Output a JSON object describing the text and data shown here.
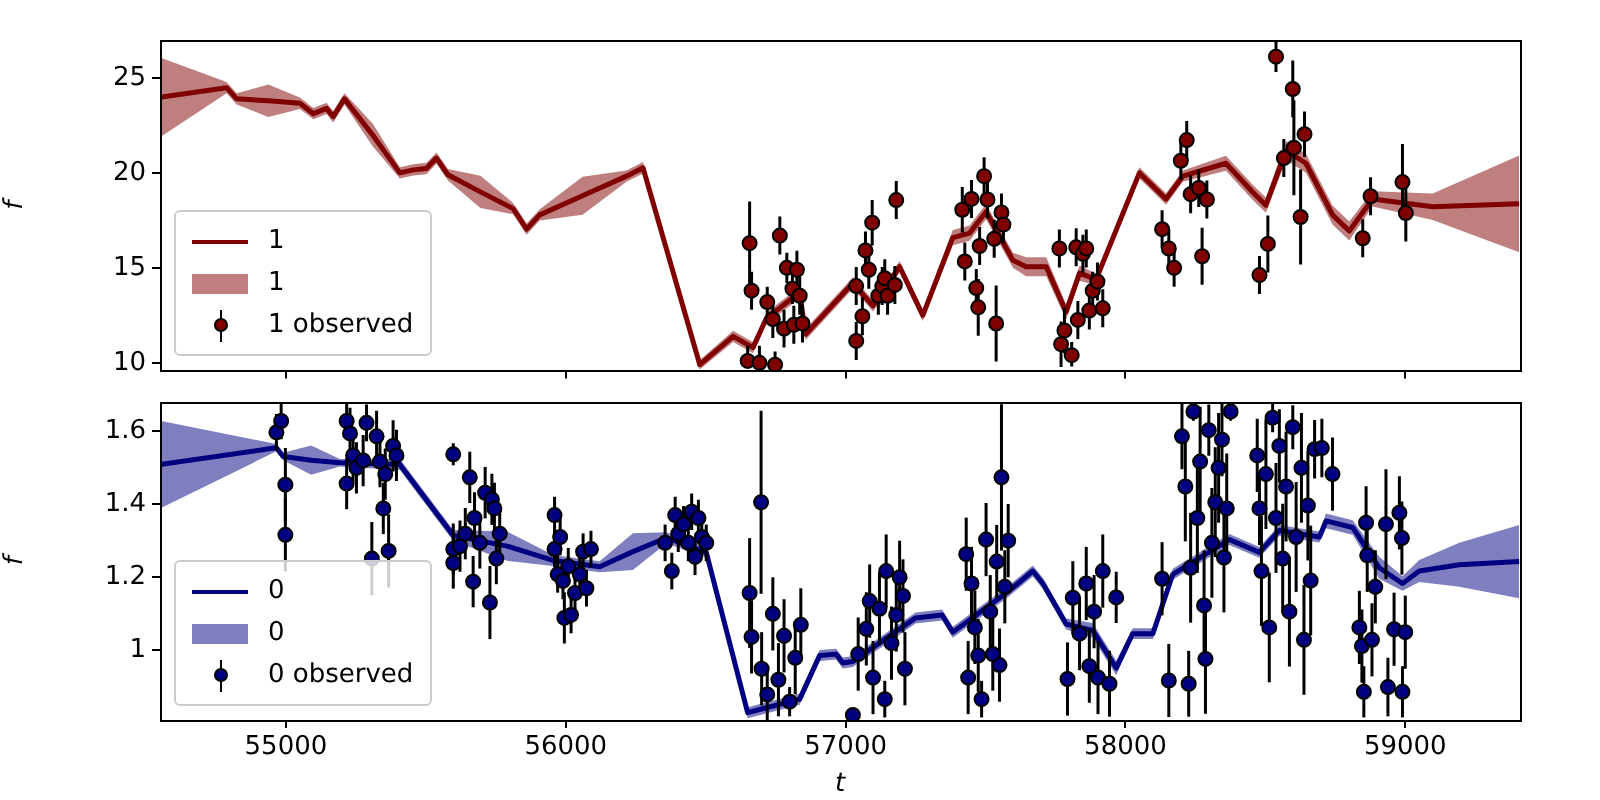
{
  "chart_data": [
    {
      "type": "line",
      "ylabel": "f",
      "xlim": [
        54550,
        59410
      ],
      "xticks": [
        55000,
        56000,
        57000,
        58000,
        59000
      ],
      "ylim": [
        9.6,
        27
      ],
      "yticks": [
        10,
        15,
        20,
        25
      ],
      "tick_labels": "y",
      "legend": "bottom left",
      "series": [
        {
          "name": "1",
          "marker": "none",
          "color": "#800000",
          "x": [
            54550,
            54788,
            54824,
            54937,
            55050,
            55098,
            55145,
            55169,
            55209,
            55310,
            55407,
            55455,
            55502,
            55538,
            55579,
            55695,
            55812,
            55860,
            55907,
            56060,
            56217,
            56276,
            56479,
            56598,
            56669,
            56717,
            56836,
            56857,
            57026,
            57098,
            57193,
            57276,
            57383,
            57443,
            57502,
            57598,
            57645,
            57717,
            57788,
            57836,
            57895,
            58050,
            58145,
            58205,
            58359,
            58455,
            58502,
            58574,
            58645,
            58740,
            58800,
            58883,
            59098,
            59407
          ],
          "values": [
            23.98,
            24.49,
            23.9,
            23.8,
            23.67,
            23.12,
            23.4,
            22.96,
            23.9,
            22.0,
            20.0,
            20.16,
            20.23,
            20.78,
            19.9,
            19.0,
            18.12,
            17.04,
            17.79,
            18.8,
            19.83,
            20.27,
            9.9,
            11.39,
            10.8,
            12.35,
            13.7,
            11.5,
            14.2,
            13.0,
            15.06,
            12.5,
            16.59,
            16.83,
            17.96,
            15.4,
            15.06,
            15.06,
            12.68,
            14.72,
            14.39,
            20.0,
            18.63,
            19.83,
            20.51,
            18.98,
            18.3,
            21.18,
            20.51,
            17.79,
            16.94,
            18.63,
            18.22,
            18.37
          ],
          "lower": [
            21.88,
            24.19,
            23.6,
            22.95,
            23.37,
            22.82,
            23.1,
            22.66,
            23.6,
            21.4,
            19.7,
            19.86,
            19.93,
            20.48,
            19.6,
            18.15,
            17.82,
            16.74,
            17.49,
            17.8,
            19.53,
            19.97,
            9.65,
            11.09,
            10.5,
            12.05,
            13.4,
            11.2,
            13.9,
            12.7,
            14.76,
            12.2,
            16.19,
            16.43,
            17.56,
            15.0,
            14.56,
            14.56,
            12.28,
            14.32,
            14.09,
            19.7,
            18.33,
            19.53,
            20.11,
            18.58,
            17.9,
            20.68,
            20.01,
            17.29,
            16.44,
            18.23,
            17.52,
            15.82
          ],
          "upper": [
            26.08,
            24.79,
            24.2,
            24.65,
            23.97,
            23.42,
            23.7,
            23.26,
            24.2,
            22.6,
            20.3,
            20.46,
            20.53,
            21.08,
            20.2,
            19.85,
            18.42,
            17.34,
            18.09,
            19.8,
            20.13,
            20.57,
            10.15,
            11.69,
            11.1,
            12.65,
            14.0,
            11.8,
            14.5,
            13.3,
            15.36,
            12.8,
            16.99,
            17.23,
            18.36,
            15.8,
            15.56,
            15.56,
            13.08,
            15.12,
            14.69,
            20.3,
            18.93,
            20.13,
            20.91,
            19.38,
            18.7,
            21.68,
            21.01,
            18.29,
            17.44,
            19.03,
            18.92,
            20.92
          ]
        },
        {
          "name": "1 observed",
          "type": "scatter",
          "marker": "circle",
          "color": "#800000",
          "x": [
            56657,
            56664,
            56650,
            56692,
            56748,
            56765,
            56790,
            56720,
            56740,
            56780,
            56810,
            56815,
            56826,
            56836,
            56846,
            57038,
            57038,
            57060,
            57071,
            57083,
            57095,
            57117,
            57131,
            57140,
            57150,
            57176,
            57181,
            57417,
            57426,
            57450,
            57467,
            57474,
            57479,
            57495,
            57507,
            57531,
            57538,
            57557,
            57564,
            57764,
            57770,
            57782,
            57808,
            57830,
            57824,
            57848,
            57860,
            57871,
            57883,
            57900,
            57919,
            58131,
            58155,
            58174,
            58198,
            58219,
            58233,
            58262,
            58274,
            58291,
            58479,
            58509,
            58538,
            58566,
            58598,
            58602,
            58626,
            58640,
            58848,
            58876,
            58990,
            59002
          ],
          "values": [
            16.3,
            13.8,
            10.1,
            10.0,
            9.9,
            16.7,
            15.0,
            13.2,
            12.3,
            11.8,
            13.9,
            12.0,
            14.9,
            13.53,
            12.07,
            14.04,
            11.15,
            12.45,
            15.92,
            14.9,
            17.38,
            13.53,
            14.04,
            14.45,
            13.53,
            14.1,
            18.57,
            18.06,
            15.34,
            18.63,
            13.94,
            12.92,
            16.15,
            19.83,
            18.6,
            16.53,
            12.07,
            17.92,
            17.28,
            16.02,
            10.98,
            11.7,
            10.4,
            12.26,
            16.08,
            15.74,
            16.02,
            12.75,
            13.8,
            14.28,
            12.87,
            17.04,
            16.02,
            15.0,
            20.64,
            21.73,
            18.88,
            19.21,
            15.61,
            18.6,
            14.62,
            16.26,
            26.12,
            20.78,
            24.42,
            21.33,
            17.68,
            22.04,
            16.56,
            18.77,
            19.52,
            17.89
          ],
          "errors": [
            2.2,
            1.0,
            [
              9.8,
              10.9
            ],
            [
              9.8,
              10.9
            ],
            [
              9.8,
              10.6
            ],
            1.0,
            0.8,
            0.8,
            1.0,
            1.0,
            0.8,
            1.0,
            1.0,
            1.0,
            1.0,
            1.0,
            1.0,
            1.0,
            1.0,
            1.0,
            1.2,
            1.0,
            1.0,
            1.0,
            1.0,
            1.0,
            1.0,
            1.2,
            1.0,
            1.0,
            1.0,
            1.5,
            1.0,
            1.0,
            1.0,
            1.0,
            2.0,
            1.0,
            1.0,
            1.0,
            1.2,
            1.2,
            [
              9.8,
              11.1
            ],
            1.0,
            1.0,
            1.0,
            1.0,
            1.0,
            1.0,
            1.0,
            1.0,
            1.0,
            1.0,
            1.0,
            1.0,
            1.0,
            1.0,
            1.0,
            1.5,
            1.0,
            1.0,
            1.5,
            0.8,
            1.0,
            1.5,
            2.5,
            2.5,
            1.2,
            1.0,
            1.0,
            2.0,
            1.5
          ]
        }
      ]
    },
    {
      "type": "line",
      "xlabel": "t",
      "ylabel": "f",
      "xlim": [
        54550,
        59410
      ],
      "xticks": [
        55000,
        56000,
        57000,
        58000,
        59000
      ],
      "ylim": [
        0.81,
        1.68
      ],
      "yticks": [
        1.0,
        1.2,
        1.4,
        1.6
      ],
      "legend": "bottom left",
      "series": [
        {
          "name": "0",
          "marker": "none",
          "color": "#000080",
          "x": [
            54550,
            54966,
            54990,
            55090,
            55193,
            55407,
            55598,
            55790,
            55955,
            56121,
            56240,
            56360,
            56502,
            56650,
            56836,
            56907,
            56966,
            56990,
            57026,
            57250,
            57345,
            57383,
            57574,
            57669,
            57705,
            57788,
            57883,
            57967,
            58026,
            58098,
            58169,
            58371,
            58479,
            58550,
            58693,
            58717,
            58812,
            58907,
            58990,
            59050,
            59193,
            59407
          ],
          "values": [
            1.508,
            1.554,
            1.53,
            1.52,
            1.513,
            1.508,
            1.314,
            1.285,
            1.246,
            1.229,
            1.27,
            1.308,
            1.268,
            0.83,
            0.867,
            0.986,
            0.99,
            0.966,
            0.97,
            1.089,
            1.097,
            1.05,
            1.157,
            1.217,
            1.183,
            1.072,
            1.055,
            0.952,
            1.046,
            1.046,
            1.208,
            1.303,
            1.268,
            1.328,
            1.31,
            1.354,
            1.336,
            1.226,
            1.183,
            1.217,
            1.234,
            1.243
          ],
          "lower": [
            1.388,
            1.544,
            1.52,
            1.48,
            1.503,
            1.493,
            1.299,
            1.245,
            1.231,
            1.214,
            1.22,
            1.293,
            1.253,
            0.815,
            0.852,
            0.971,
            0.975,
            0.951,
            0.955,
            1.074,
            1.082,
            1.035,
            1.142,
            1.202,
            1.168,
            1.057,
            1.035,
            0.932,
            1.031,
            1.031,
            1.193,
            1.288,
            1.253,
            1.313,
            1.295,
            1.334,
            1.316,
            1.196,
            1.163,
            1.187,
            1.174,
            1.143
          ],
          "upper": [
            1.628,
            1.564,
            1.54,
            1.56,
            1.523,
            1.523,
            1.329,
            1.325,
            1.261,
            1.244,
            1.32,
            1.323,
            1.283,
            0.845,
            0.882,
            1.001,
            1.005,
            0.981,
            0.985,
            1.104,
            1.112,
            1.065,
            1.172,
            1.232,
            1.198,
            1.087,
            1.075,
            0.972,
            1.061,
            1.061,
            1.223,
            1.318,
            1.283,
            1.343,
            1.325,
            1.374,
            1.356,
            1.256,
            1.203,
            1.247,
            1.294,
            1.343
          ]
        },
        {
          "name": "0 observed",
          "type": "scatter",
          "marker": "circle",
          "color": "#000080",
          "x": [
            54966,
            54983,
            54998,
            54998,
            55217,
            55229,
            55240,
            55252,
            55217,
            55276,
            55288,
            55307,
            55324,
            55336,
            55348,
            55355,
            55367,
            55383,
            55395,
            55598,
            55598,
            55598,
            55622,
            55641,
            55657,
            55669,
            55674,
            55693,
            55712,
            55729,
            55736,
            55745,
            55752,
            55764,
            55960,
            55960,
            55971,
            55980,
            55990,
            55995,
            56009,
            56019,
            56033,
            56050,
            56062,
            56074,
            56090,
            56355,
            56379,
            56391,
            56402,
            56421,
            56438,
            56450,
            56462,
            56474,
            56486,
            56502,
            56657,
            56698,
            56664,
            56700,
            56720,
            56740,
            56760,
            56780,
            56800,
            56820,
            56840,
            57026,
            57045,
            57074,
            57086,
            57098,
            57121,
            57140,
            57145,
            57164,
            57181,
            57193,
            57205,
            57212,
            57431,
            57438,
            57450,
            57462,
            57474,
            57486,
            57502,
            57517,
            57526,
            57540,
            57550,
            57557,
            57569,
            57581,
            57793,
            57812,
            57836,
            57860,
            57871,
            57888,
            57902,
            57919,
            57943,
            57967,
            58131,
            58155,
            58202,
            58214,
            58226,
            58233,
            58243,
            58257,
            58267,
            58281,
            58286,
            58298,
            58309,
            58321,
            58333,
            58345,
            58352,
            58362,
            58376,
            58471,
            58479,
            58486,
            58502,
            58514,
            58526,
            58538,
            58550,
            58562,
            58574,
            58586,
            58598,
            58610,
            58629,
            58638,
            58652,
            58662,
            58676,
            58702,
            58740,
            58836,
            58845,
            58852,
            58860,
            58864,
            58881,
            58893,
            58931,
            58938,
            58960,
            58979,
            58988,
            58990,
            59000
          ],
          "values": [
            1.596,
            1.627,
            1.453,
            1.316,
            1.627,
            1.593,
            1.533,
            1.499,
            1.456,
            1.519,
            1.622,
            1.251,
            1.585,
            1.516,
            1.388,
            1.482,
            1.272,
            1.559,
            1.533,
            1.536,
            1.277,
            1.239,
            1.285,
            1.319,
            1.473,
            1.188,
            1.362,
            1.294,
            1.431,
            1.131,
            1.413,
            1.388,
            1.251,
            1.319,
            1.37,
            1.277,
            1.208,
            1.31,
            1.19,
            1.089,
            1.23,
            1.097,
            1.157,
            1.208,
            1.27,
            1.17,
            1.277,
            1.294,
            1.217,
            1.37,
            1.319,
            1.345,
            1.294,
            1.379,
            1.256,
            1.362,
            1.31,
            1.294,
            1.157,
            1.405,
            1.037,
            0.95,
            0.88,
            1.1,
            0.92,
            1.04,
            0.86,
            0.98,
            1.07,
            0.824,
            0.99,
            1.059,
            1.135,
            0.926,
            1.114,
            0.867,
            1.217,
            1.02,
            1.097,
            1.2,
            1.149,
            0.95,
            1.263,
            0.926,
            1.183,
            1.063,
            0.986,
            0.867,
            1.303,
            1.106,
            0.99,
            1.243,
            0.96,
            1.473,
            1.174,
            1.3,
            0.922,
            1.144,
            1.046,
            1.183,
            0.957,
            1.106,
            0.926,
            1.217,
            0.909,
            1.145,
            1.196,
            0.918,
            1.585,
            1.448,
            0.909,
            1.226,
            1.653,
            1.362,
            1.516,
            1.123,
            0.977,
            1.602,
            1.294,
            1.405,
            1.499,
            1.576,
            1.254,
            1.388,
            1.653,
            1.533,
            1.388,
            1.217,
            1.482,
            1.063,
            1.636,
            1.362,
            1.559,
            1.251,
            1.448,
            1.106,
            1.61,
            1.31,
            1.499,
            1.029,
            1.396,
            1.191,
            1.55,
            1.553,
            1.482,
            1.063,
            1.012,
            0.887,
            1.349,
            1.26,
            1.029,
            1.174,
            1.345,
            0.9,
            1.058,
            1.376,
            1.307,
            0.887,
            1.05
          ],
          "errors": [
            0.05,
            0.05,
            0.1,
            0.1,
            0.05,
            0.07,
            0.07,
            0.07,
            0.07,
            0.07,
            0.05,
            0.1,
            0.07,
            0.07,
            0.07,
            0.07,
            0.1,
            0.07,
            0.07,
            0.03,
            0.07,
            0.07,
            0.07,
            0.07,
            0.07,
            0.07,
            0.07,
            0.07,
            0.07,
            0.1,
            0.07,
            0.07,
            0.07,
            0.07,
            0.05,
            0.05,
            0.05,
            0.05,
            0.05,
            0.07,
            0.05,
            0.05,
            0.05,
            0.05,
            0.05,
            0.05,
            0.05,
            0.05,
            0.05,
            0.05,
            0.05,
            0.05,
            0.05,
            0.05,
            0.05,
            0.05,
            0.05,
            0.05,
            0.15,
            0.25,
            0.1,
            0.1,
            0.07,
            0.1,
            0.1,
            0.1,
            0.04,
            0.1,
            0.1,
            0.012,
            0.1,
            0.1,
            0.1,
            0.1,
            0.1,
            0.05,
            0.1,
            0.1,
            0.1,
            0.1,
            0.1,
            0.1,
            0.1,
            0.1,
            0.1,
            0.1,
            0.1,
            0.05,
            0.1,
            0.1,
            0.1,
            0.1,
            0.1,
            0.2,
            0.1,
            0.1,
            0.1,
            0.1,
            0.1,
            0.1,
            0.1,
            0.1,
            0.1,
            0.1,
            0.09,
            0.07,
            0.1,
            0.1,
            0.09,
            0.15,
            0.09,
            0.15,
            0.025,
            0.15,
            0.15,
            0.15,
            0.15,
            0.07,
            0.15,
            0.15,
            0.15,
            0.1,
            0.15,
            0.15,
            0.025,
            0.1,
            0.1,
            0.15,
            0.15,
            0.15,
            0.04,
            0.15,
            0.1,
            0.15,
            0.15,
            0.15,
            0.06,
            0.15,
            0.15,
            0.15,
            0.15,
            0.15,
            0.08,
            0.08,
            0.1,
            0.1,
            0.1,
            0.07,
            0.1,
            0.1,
            0.1,
            0.1,
            0.15,
            0.08,
            0.1,
            0.1,
            0.1,
            0.07,
            0.1
          ]
        }
      ]
    }
  ]
}
